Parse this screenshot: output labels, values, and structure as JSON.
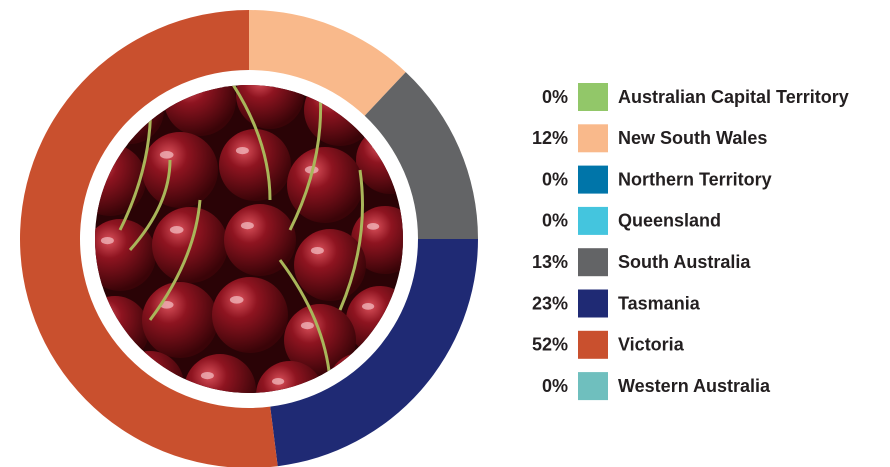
{
  "chart_data": {
    "type": "donut",
    "categories": [
      "Australian Capital Territory",
      "New South Wales",
      "Northern Territory",
      "Queensland",
      "South Australia",
      "Tasmania",
      "Victoria",
      "Western Australia"
    ],
    "values": [
      0,
      12,
      0,
      0,
      13,
      23,
      52,
      0
    ],
    "value_labels": [
      "0%",
      "12%",
      "0%",
      "0%",
      "13%",
      "23%",
      "52%",
      "0%"
    ],
    "colors": [
      "#92c769",
      "#f9b98b",
      "#0075a9",
      "#44c5de",
      "#636466",
      "#1f2a74",
      "#c9502e",
      "#6fbfbe"
    ],
    "legend": "right"
  }
}
